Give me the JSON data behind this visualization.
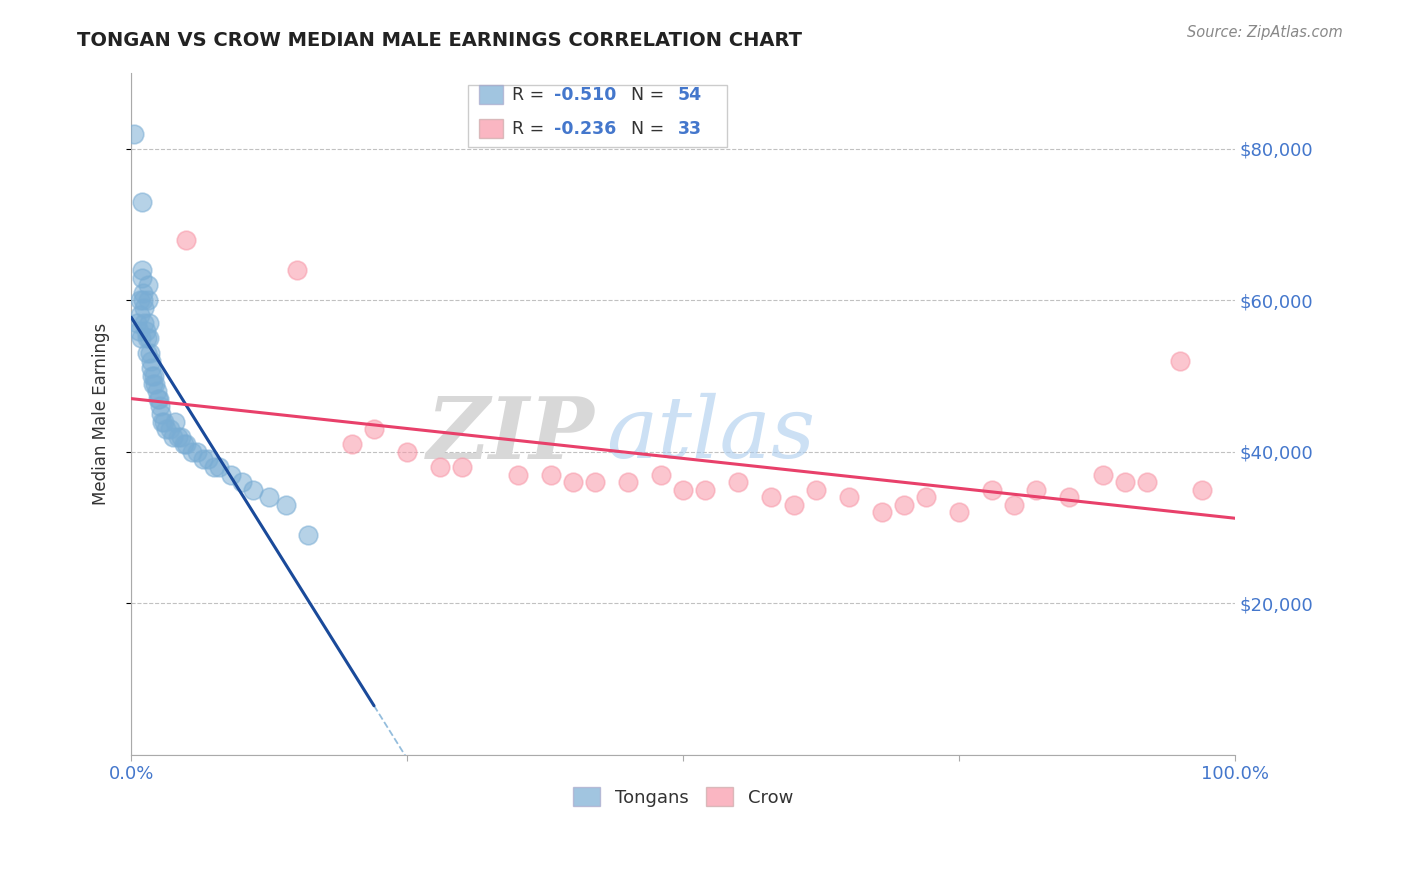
{
  "title": "TONGAN VS CROW MEDIAN MALE EARNINGS CORRELATION CHART",
  "source_text": "Source: ZipAtlas.com",
  "ylabel": "Median Male Earnings",
  "watermark_zip": "ZIP",
  "watermark_atlas": "atlas",
  "x_min": 0.0,
  "x_max": 1.0,
  "y_min": 0,
  "y_max": 90000,
  "y_ticks": [
    20000,
    40000,
    60000,
    80000
  ],
  "y_tick_labels": [
    "$20,000",
    "$40,000",
    "$60,000",
    "$80,000"
  ],
  "x_tick_positions": [
    0.0,
    0.25,
    0.5,
    0.75,
    1.0
  ],
  "x_tick_labels": [
    "0.0%",
    "",
    "",
    "",
    "100.0%"
  ],
  "legend_r1": "-0.510",
  "legend_n1": "54",
  "legend_r2": "-0.236",
  "legend_n2": "33",
  "blue_color": "#7aadd4",
  "pink_color": "#f898a8",
  "blue_line_color": "#1a4a9a",
  "pink_line_color": "#e8406a",
  "title_color": "#222222",
  "axis_label_color": "#333333",
  "tick_label_color": "#4477cc",
  "grid_color": "#bbbbbb",
  "tongans_x": [
    0.003,
    0.005,
    0.007,
    0.008,
    0.008,
    0.009,
    0.01,
    0.01,
    0.01,
    0.011,
    0.011,
    0.012,
    0.012,
    0.013,
    0.014,
    0.014,
    0.015,
    0.015,
    0.016,
    0.016,
    0.017,
    0.018,
    0.018,
    0.019,
    0.02,
    0.021,
    0.022,
    0.023,
    0.024,
    0.025,
    0.026,
    0.027,
    0.028,
    0.03,
    0.032,
    0.035,
    0.038,
    0.04,
    0.042,
    0.045,
    0.048,
    0.05,
    0.055,
    0.06,
    0.065,
    0.07,
    0.075,
    0.08,
    0.09,
    0.1,
    0.11,
    0.125,
    0.14,
    0.16
  ],
  "tongans_y": [
    82000,
    57000,
    56000,
    60000,
    58000,
    55000,
    73000,
    64000,
    63000,
    61000,
    60000,
    59000,
    57000,
    56000,
    55000,
    53000,
    62000,
    60000,
    57000,
    55000,
    53000,
    52000,
    51000,
    50000,
    49000,
    50000,
    49000,
    48000,
    47000,
    47000,
    46000,
    45000,
    44000,
    44000,
    43000,
    43000,
    42000,
    44000,
    42000,
    42000,
    41000,
    41000,
    40000,
    40000,
    39000,
    39000,
    38000,
    38000,
    37000,
    36000,
    35000,
    34000,
    33000,
    29000
  ],
  "crow_x": [
    0.05,
    0.15,
    0.2,
    0.22,
    0.25,
    0.28,
    0.3,
    0.35,
    0.38,
    0.4,
    0.42,
    0.45,
    0.48,
    0.5,
    0.52,
    0.55,
    0.58,
    0.6,
    0.62,
    0.65,
    0.68,
    0.7,
    0.72,
    0.75,
    0.78,
    0.8,
    0.82,
    0.85,
    0.88,
    0.9,
    0.92,
    0.95,
    0.97
  ],
  "crow_y": [
    68000,
    64000,
    41000,
    43000,
    40000,
    38000,
    38000,
    37000,
    37000,
    36000,
    36000,
    36000,
    37000,
    35000,
    35000,
    36000,
    34000,
    33000,
    35000,
    34000,
    32000,
    33000,
    34000,
    32000,
    35000,
    33000,
    35000,
    34000,
    37000,
    36000,
    36000,
    52000,
    35000
  ]
}
